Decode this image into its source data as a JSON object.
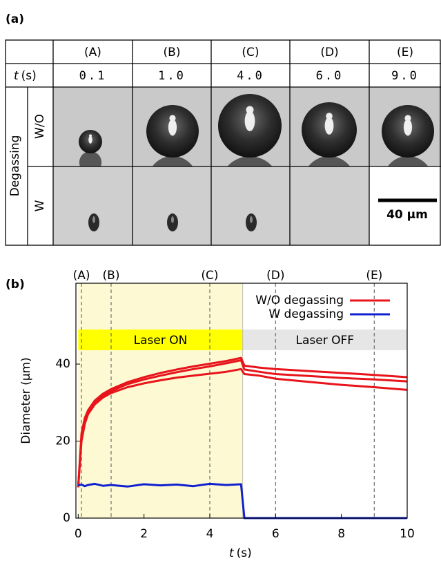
{
  "panel_a": {
    "label": "(a)",
    "columns": [
      "(A)",
      "(B)",
      "(C)",
      "(D)",
      "(E)"
    ],
    "time_var": "t",
    "time_unit": "(s)",
    "times": [
      "0.1",
      "1.0",
      "4.0",
      "6.0",
      "9.0"
    ],
    "row_group": "Degassing",
    "rows": [
      "W/O",
      "W"
    ],
    "scale_bar": "40 μm"
  },
  "chart_data": {
    "type": "line",
    "panel_label": "(b)",
    "xlabel_var": "t",
    "xlabel_unit": "(s)",
    "ylabel": "Diameter (μm)",
    "xlim": [
      -0.07,
      10
    ],
    "ylim": [
      0,
      61
    ],
    "xticks": [
      0,
      2,
      4,
      6,
      8,
      10
    ],
    "yticks": [
      0,
      20,
      40
    ],
    "x": [
      0,
      0.1,
      0.2,
      0.3,
      0.5,
      0.75,
      1,
      1.5,
      2,
      2.5,
      3,
      3.5,
      4,
      4.5,
      4.95,
      5.05,
      5.5,
      6,
      7,
      8,
      9,
      10
    ],
    "series": [
      {
        "name": "W/O degassing",
        "color": "#e8141b",
        "trials": [
          {
            "values": [
              8,
              22,
              26,
              28,
              30.5,
              32.3,
              33.5,
              35.3,
              36.6,
              37.7,
              38.6,
              39.4,
              40.1,
              40.8,
              41.6,
              39.6,
              39.1,
              38.7,
              38.2,
              37.7,
              37.2,
              36.6
            ]
          },
          {
            "values": [
              8,
              21,
              25,
              27.5,
              30,
              31.8,
              33,
              34.8,
              36,
              37,
              37.9,
              38.7,
              39.4,
              40.2,
              41,
              38.6,
              38,
              37.4,
              36.9,
              36.4,
              36,
              35.5
            ]
          },
          {
            "values": [
              8,
              20,
              24.5,
              27,
              29.5,
              31.3,
              32.5,
              34,
              35,
              35.8,
              36.5,
              37,
              37.5,
              38,
              38.7,
              37.4,
              37,
              36.2,
              35.4,
              34.6,
              34,
              33.3
            ]
          }
        ]
      },
      {
        "name": "W degassing",
        "color": "#1020d0",
        "trials": [
          {
            "values": [
              8.5,
              8.7,
              8.3,
              8.6,
              8.9,
              8.4,
              8.6,
              8.2,
              8.8,
              8.5,
              8.7,
              8.3,
              8.9,
              8.6,
              8.8,
              0,
              0,
              0,
              0,
              0,
              0,
              0
            ]
          }
        ]
      }
    ],
    "markers": [
      {
        "x": 0.1,
        "label": "(A)"
      },
      {
        "x": 1,
        "label": "(B)"
      },
      {
        "x": 4,
        "label": "(C)"
      },
      {
        "x": 6,
        "label": "(D)"
      },
      {
        "x": 9,
        "label": "(E)"
      }
    ],
    "shaded": [
      0,
      5
    ],
    "shaded_color": "#fdf9d2",
    "bands": [
      {
        "label": "Laser ON",
        "x": [
          0,
          5
        ],
        "color": "#ffff00"
      },
      {
        "label": "Laser OFF",
        "x": [
          5,
          10
        ],
        "color": "#e6e6e6"
      }
    ],
    "legend": "top-right",
    "grid": false
  }
}
